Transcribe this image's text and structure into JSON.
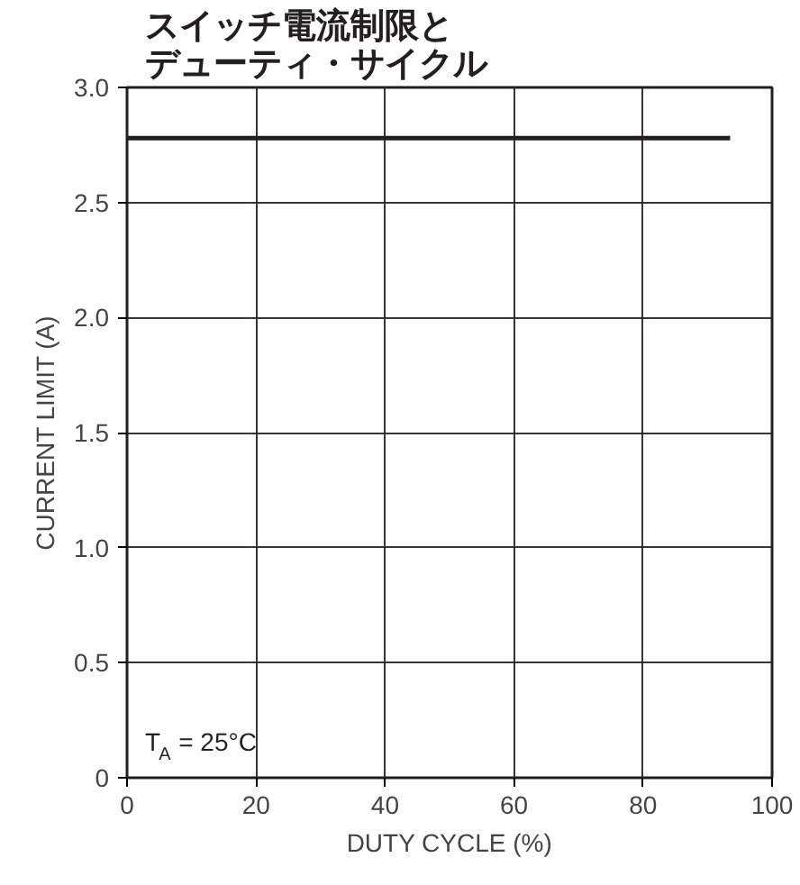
{
  "chart_data": {
    "type": "line",
    "title": "スイッチ電流制限とデューティ・サイクル",
    "xlabel": "DUTY CYCLE (%)",
    "ylabel": "CURRENT LIMIT (A)",
    "x": [
      0,
      93.5
    ],
    "series": [
      {
        "color": "#231f20",
        "values": [
          2.78,
          2.78
        ]
      }
    ],
    "xlim": [
      0,
      100
    ],
    "ylim": [
      0,
      3.0
    ],
    "xticks": [
      0,
      20,
      40,
      60,
      80,
      100
    ],
    "yticks": [
      0,
      0.5,
      {
        "value": 1,
        "label": "1.0"
      },
      1.5,
      {
        "value": 2,
        "label": "2.0"
      },
      2.5,
      {
        "value": 3,
        "label": "3.0"
      }
    ],
    "grid": true,
    "marker": "none",
    "line_style": "solid",
    "annotations": [
      "T$_{A}$ = 25°C"
    ]
  }
}
